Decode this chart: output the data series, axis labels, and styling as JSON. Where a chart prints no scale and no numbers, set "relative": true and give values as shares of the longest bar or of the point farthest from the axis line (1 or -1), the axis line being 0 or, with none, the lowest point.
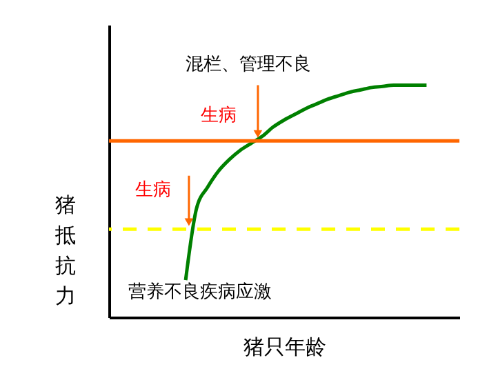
{
  "chart_data": {
    "type": "line",
    "relative": true,
    "xlabel": "猪只年龄",
    "ylabel": "猪抵抗力",
    "categories": [
      null,
      null,
      null,
      null,
      null,
      null,
      null,
      null,
      null,
      null,
      null,
      null,
      null,
      null,
      null,
      null,
      null,
      null,
      null,
      null,
      null,
      null,
      null,
      null,
      null,
      null,
      null,
      null,
      null,
      null,
      null,
      null,
      null
    ],
    "series": [
      {
        "color": "#008000",
        "values": [
          null,
          null,
          null,
          null,
          null,
          null,
          null,
          0.16,
          0.47,
          0.56,
          0.63,
          0.68,
          0.72,
          0.75,
          0.78,
          0.82,
          0.85,
          0.875,
          0.9,
          0.92,
          0.94,
          0.955,
          0.97,
          0.98,
          0.99,
          0.995,
          1.0,
          1.0,
          1.0,
          1.0,
          null,
          null,
          null
        ]
      }
    ],
    "ref_lines": [
      {
        "axis": "y",
        "value": 0.76,
        "color": "#ff6600",
        "line_style": "solid"
      },
      {
        "axis": "y",
        "value": 0.38,
        "color": "#ffff00",
        "line_style": "dashed"
      }
    ],
    "annotations": [
      "混栏、管理不良",
      "生病",
      "生病",
      "营养不良疾病应激"
    ],
    "grid": false,
    "marker": "none",
    "line_style": "solid"
  }
}
